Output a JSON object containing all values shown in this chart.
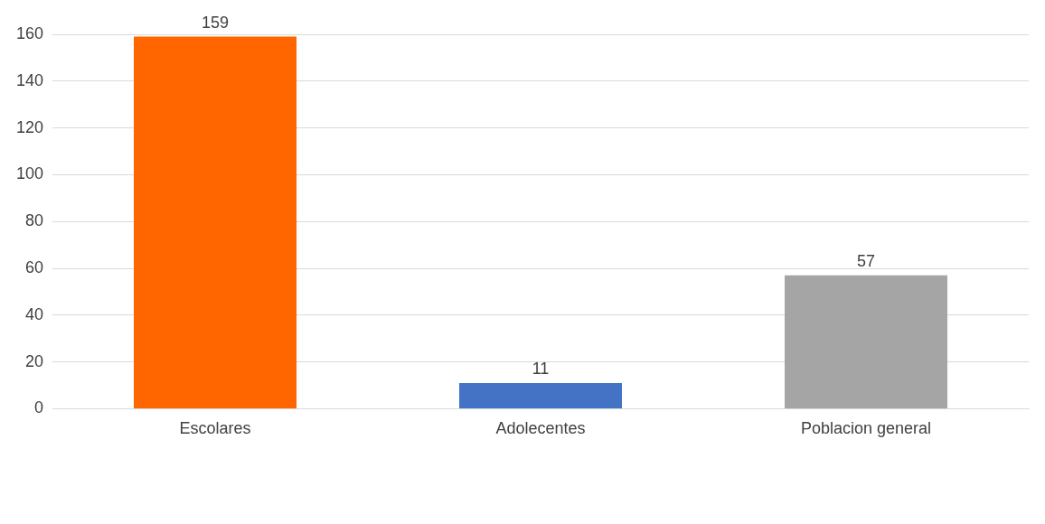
{
  "chart_data": {
    "type": "bar",
    "categories": [
      "Escolares",
      "Adolecentes",
      "Poblacion general"
    ],
    "values": [
      159,
      11,
      57
    ],
    "colors": [
      "#ff6600",
      "#4472c4",
      "#a5a5a5"
    ],
    "ylim": [
      0,
      160
    ],
    "yticks": [
      0,
      20,
      40,
      60,
      80,
      100,
      120,
      140,
      160
    ],
    "grid": "y",
    "data_labels": true
  }
}
